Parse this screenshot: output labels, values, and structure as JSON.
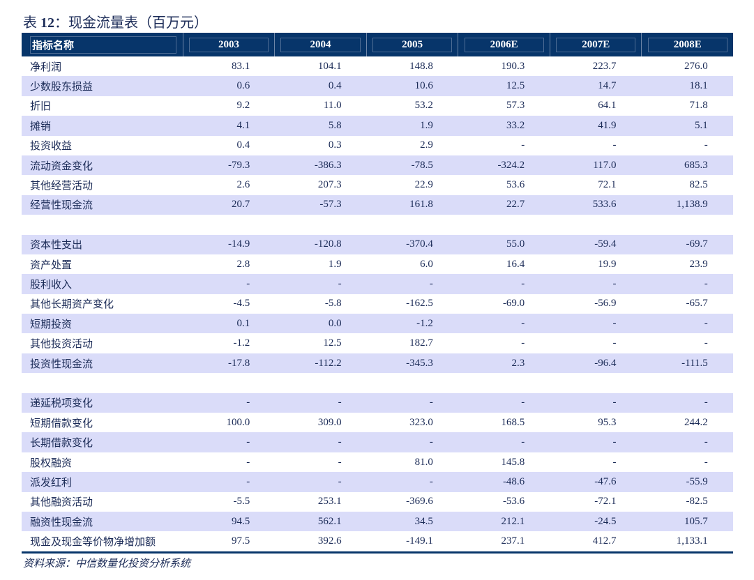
{
  "title": {
    "prefix": "表 ",
    "num": "12",
    "rest": "：现金流量表（百万元）"
  },
  "header": [
    "指标名称",
    "2003",
    "2004",
    "2005",
    "2006E",
    "2007E",
    "2008E"
  ],
  "colors": {
    "header_bg": "#07356a",
    "shade": "#dadcf9",
    "text": "#1b2b57"
  },
  "sections": [
    {
      "rows": [
        {
          "label": "净利润",
          "values": [
            "83.1",
            "104.1",
            "148.8",
            "190.3",
            "223.7",
            "276.0"
          ]
        },
        {
          "label": "少数股东损益",
          "values": [
            "0.6",
            "0.4",
            "10.6",
            "12.5",
            "14.7",
            "18.1"
          ]
        },
        {
          "label": "折旧",
          "values": [
            "9.2",
            "11.0",
            "53.2",
            "57.3",
            "64.1",
            "71.8"
          ]
        },
        {
          "label": "摊销",
          "values": [
            "4.1",
            "5.8",
            "1.9",
            "33.2",
            "41.9",
            "5.1"
          ]
        },
        {
          "label": "投资收益",
          "values": [
            "0.4",
            "0.3",
            "2.9",
            "-",
            "-",
            "-"
          ]
        },
        {
          "label": "流动资金变化",
          "values": [
            "-79.3",
            "-386.3",
            "-78.5",
            "-324.2",
            "117.0",
            "685.3"
          ]
        },
        {
          "label": "其他经营活动",
          "values": [
            "2.6",
            "207.3",
            "22.9",
            "53.6",
            "72.1",
            "82.5"
          ]
        },
        {
          "label": "经营性现金流",
          "values": [
            "20.7",
            "-57.3",
            "161.8",
            "22.7",
            "533.6",
            "1,138.9"
          ]
        }
      ]
    },
    {
      "rows": [
        {
          "label": "资本性支出",
          "values": [
            "-14.9",
            "-120.8",
            "-370.4",
            "55.0",
            "-59.4",
            "-69.7"
          ]
        },
        {
          "label": "资产处置",
          "values": [
            "2.8",
            "1.9",
            "6.0",
            "16.4",
            "19.9",
            "23.9"
          ]
        },
        {
          "label": "股利收入",
          "values": [
            "-",
            "-",
            "-",
            "-",
            "-",
            "-"
          ]
        },
        {
          "label": "其他长期资产变化",
          "values": [
            "-4.5",
            "-5.8",
            "-162.5",
            "-69.0",
            "-56.9",
            "-65.7"
          ]
        },
        {
          "label": "短期投资",
          "values": [
            "0.1",
            "0.0",
            "-1.2",
            "-",
            "-",
            "-"
          ]
        },
        {
          "label": "其他投资活动",
          "values": [
            "-1.2",
            "12.5",
            "182.7",
            "-",
            "-",
            "-"
          ]
        },
        {
          "label": "投资性现金流",
          "values": [
            "-17.8",
            "-112.2",
            "-345.3",
            "2.3",
            "-96.4",
            "-111.5"
          ]
        }
      ]
    },
    {
      "rows": [
        {
          "label": "递延税项变化",
          "values": [
            "-",
            "-",
            "-",
            "-",
            "-",
            "-"
          ]
        },
        {
          "label": "短期借款变化",
          "values": [
            "100.0",
            "309.0",
            "323.0",
            "168.5",
            "95.3",
            "244.2"
          ]
        },
        {
          "label": "长期借款变化",
          "values": [
            "-",
            "-",
            "-",
            "-",
            "-",
            "-"
          ]
        },
        {
          "label": "股权融资",
          "values": [
            "-",
            "-",
            "81.0",
            "145.8",
            "-",
            "-"
          ]
        },
        {
          "label": "派发红利",
          "values": [
            "-",
            "-",
            "-",
            "-48.6",
            "-47.6",
            "-55.9"
          ]
        },
        {
          "label": "其他融资活动",
          "values": [
            "-5.5",
            "253.1",
            "-369.6",
            "-53.6",
            "-72.1",
            "-82.5"
          ]
        },
        {
          "label": "融资性现金流",
          "values": [
            "94.5",
            "562.1",
            "34.5",
            "212.1",
            "-24.5",
            "105.7"
          ]
        },
        {
          "label": "现金及现金等价物净增加额",
          "values": [
            "97.5",
            "392.6",
            "-149.1",
            "237.1",
            "412.7",
            "1,133.1"
          ]
        }
      ]
    }
  ],
  "source": "资料来源：中信数量化投资分析系统"
}
